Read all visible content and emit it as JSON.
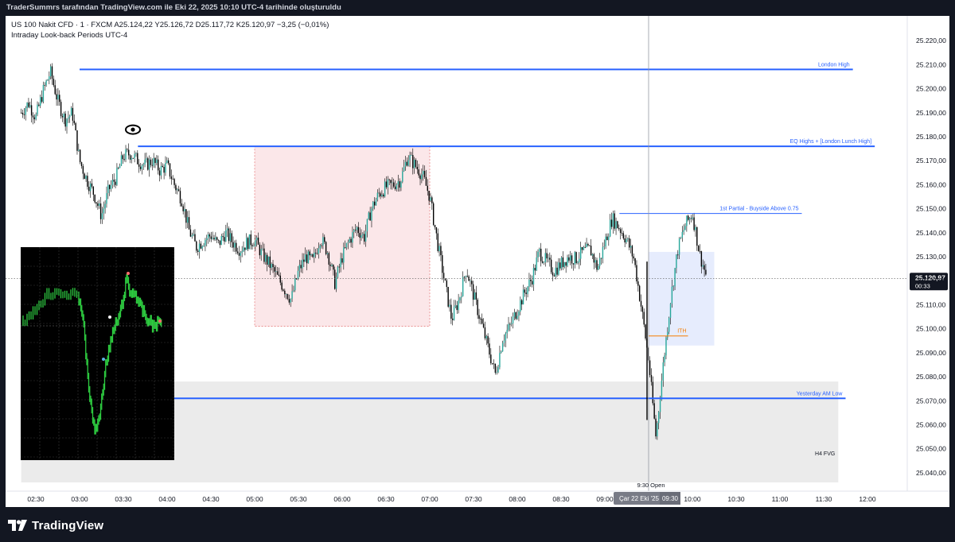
{
  "header": {
    "text": "TraderSummrs tarafından TradingView.com ile Eki 22, 2025 10:10 UTC-4 tarihinde oluşturuldu"
  },
  "symbol": {
    "line1": "US 100 Nakit CFD · 1 · FXCM  A25.124,22  Y25.126,72  D25.117,72  K25.120,97  −3,25 (−0,01%)",
    "line2": "Intraday Look-back Periods UTC-4"
  },
  "footer": {
    "logo_text": "TradingView"
  },
  "colors": {
    "up": "#26a69a",
    "down": "#000000",
    "wick": "#000000",
    "level": "#2962ff",
    "ith": "#f57c00",
    "zone_pink": "#f8d7da",
    "zone_blue": "#d6e0fb",
    "zone_gray": "#e9e9e9"
  },
  "chart_data": {
    "type": "candlestick",
    "ylim": [
      25035,
      25227
    ],
    "y_ticks": [
      "25.220,00",
      "25.210,00",
      "25.200,00",
      "25.190,00",
      "25.180,00",
      "25.170,00",
      "25.160,00",
      "25.150,00",
      "25.140,00",
      "25.130,00",
      "25.120,00",
      "25.110,00",
      "25.100,00",
      "25.090,00",
      "25.080,00",
      "25.070,00",
      "25.060,00",
      "25.050,00",
      "25.040,00"
    ],
    "x_ticks": [
      "02:30",
      "03:00",
      "03:30",
      "04:00",
      "04:30",
      "05:00",
      "05:30",
      "06:00",
      "06:30",
      "07:00",
      "07:30",
      "08:00",
      "08:30",
      "09:00",
      "10:00",
      "10:30",
      "11:00",
      "11:30",
      "12:00"
    ],
    "last_price": {
      "label": "25.120,97",
      "countdown": "00:33",
      "value": 25120.97
    },
    "crosshair": {
      "time_label": "Çar 22 Eki '25",
      "time_value": "09:30"
    },
    "price_path": [
      [
        "02:20",
        25190
      ],
      [
        "02:25",
        25194
      ],
      [
        "02:30",
        25188
      ],
      [
        "02:35",
        25199
      ],
      [
        "02:40",
        25207
      ],
      [
        "02:45",
        25195
      ],
      [
        "02:50",
        25187
      ],
      [
        "02:55",
        25190
      ],
      [
        "03:00",
        25170
      ],
      [
        "03:05",
        25162
      ],
      [
        "03:10",
        25156
      ],
      [
        "03:15",
        25147
      ],
      [
        "03:20",
        25158
      ],
      [
        "03:25",
        25163
      ],
      [
        "03:30",
        25172
      ],
      [
        "03:35",
        25173
      ],
      [
        "03:40",
        25170
      ],
      [
        "03:45",
        25168
      ],
      [
        "03:50",
        25170
      ],
      [
        "03:55",
        25166
      ],
      [
        "04:00",
        25168
      ],
      [
        "04:05",
        25160
      ],
      [
        "04:10",
        25154
      ],
      [
        "04:15",
        25141
      ],
      [
        "04:20",
        25134
      ],
      [
        "04:25",
        25137
      ],
      [
        "04:30",
        25139
      ],
      [
        "04:35",
        25135
      ],
      [
        "04:40",
        25140
      ],
      [
        "04:45",
        25136
      ],
      [
        "04:50",
        25133
      ],
      [
        "04:55",
        25136
      ],
      [
        "05:00",
        25137
      ],
      [
        "05:05",
        25131
      ],
      [
        "05:10",
        25127
      ],
      [
        "05:15",
        25122
      ],
      [
        "05:20",
        25117
      ],
      [
        "05:25",
        25112
      ],
      [
        "05:30",
        25124
      ],
      [
        "05:35",
        25130
      ],
      [
        "05:40",
        25128
      ],
      [
        "05:45",
        25138
      ],
      [
        "05:50",
        25132
      ],
      [
        "05:55",
        25119
      ],
      [
        "06:00",
        25130
      ],
      [
        "06:05",
        25137
      ],
      [
        "06:10",
        25142
      ],
      [
        "06:15",
        25138
      ],
      [
        "06:20",
        25150
      ],
      [
        "06:25",
        25156
      ],
      [
        "06:30",
        25159
      ],
      [
        "06:35",
        25160
      ],
      [
        "06:40",
        25162
      ],
      [
        "06:45",
        25172
      ],
      [
        "06:50",
        25168
      ],
      [
        "06:55",
        25164
      ],
      [
        "07:00",
        25155
      ],
      [
        "07:05",
        25137
      ],
      [
        "07:10",
        25120
      ],
      [
        "07:15",
        25104
      ],
      [
        "07:20",
        25112
      ],
      [
        "07:25",
        25125
      ],
      [
        "07:30",
        25114
      ],
      [
        "07:35",
        25103
      ],
      [
        "07:40",
        25092
      ],
      [
        "07:45",
        25081
      ],
      [
        "07:50",
        25096
      ],
      [
        "07:55",
        25101
      ],
      [
        "08:00",
        25108
      ],
      [
        "08:05",
        25115
      ],
      [
        "08:10",
        25121
      ],
      [
        "08:15",
        25132
      ],
      [
        "08:20",
        25128
      ],
      [
        "08:25",
        25124
      ],
      [
        "08:30",
        25127
      ],
      [
        "08:35",
        25130
      ],
      [
        "08:40",
        25129
      ],
      [
        "08:45",
        25132
      ],
      [
        "08:50",
        25133
      ],
      [
        "08:55",
        25125
      ],
      [
        "09:00",
        25136
      ],
      [
        "09:05",
        25146
      ],
      [
        "09:10",
        25142
      ],
      [
        "09:15",
        25137
      ],
      [
        "09:20",
        25129
      ],
      [
        "09:25",
        25109
      ],
      [
        "09:30",
        25087
      ],
      [
        "09:35",
        25055
      ],
      [
        "09:40",
        25085
      ],
      [
        "09:45",
        25112
      ],
      [
        "09:50",
        25133
      ],
      [
        "09:55",
        25143
      ],
      [
        "10:00",
        25148
      ],
      [
        "10:05",
        25131
      ],
      [
        "10:10",
        25121
      ]
    ],
    "levels": [
      {
        "label": "London High",
        "value": 25208,
        "from": "03:00",
        "to": "11:50"
      },
      {
        "label": "EQ Highs + [London Lunch High]",
        "value": 25176,
        "from": "03:40",
        "to": "12:05"
      },
      {
        "label": "1st Partial - Buyside Above 0.75",
        "value": 25148,
        "from": "09:10",
        "to": "11:15"
      },
      {
        "label": "Yesterday AM Low",
        "value": 25071,
        "from": "02:20",
        "to": "11:45"
      },
      {
        "label": "ITH",
        "value": 25097,
        "from": "09:30",
        "to": "09:57"
      }
    ],
    "zones": [
      {
        "kind": "pink",
        "from": "05:00",
        "to": "07:00",
        "top": 25176,
        "bottom": 25101
      },
      {
        "kind": "blue",
        "from": "09:30",
        "to": "10:15",
        "top": 25132,
        "bottom": 25093
      },
      {
        "kind": "gray",
        "label": "H4 FVG",
        "from": "02:20",
        "to": "11:40",
        "top": 25078,
        "bottom": 25036
      }
    ],
    "vertical_marker": {
      "label": "9:30 Open",
      "time": "09:30"
    },
    "inset": {
      "description_free": true
    }
  }
}
